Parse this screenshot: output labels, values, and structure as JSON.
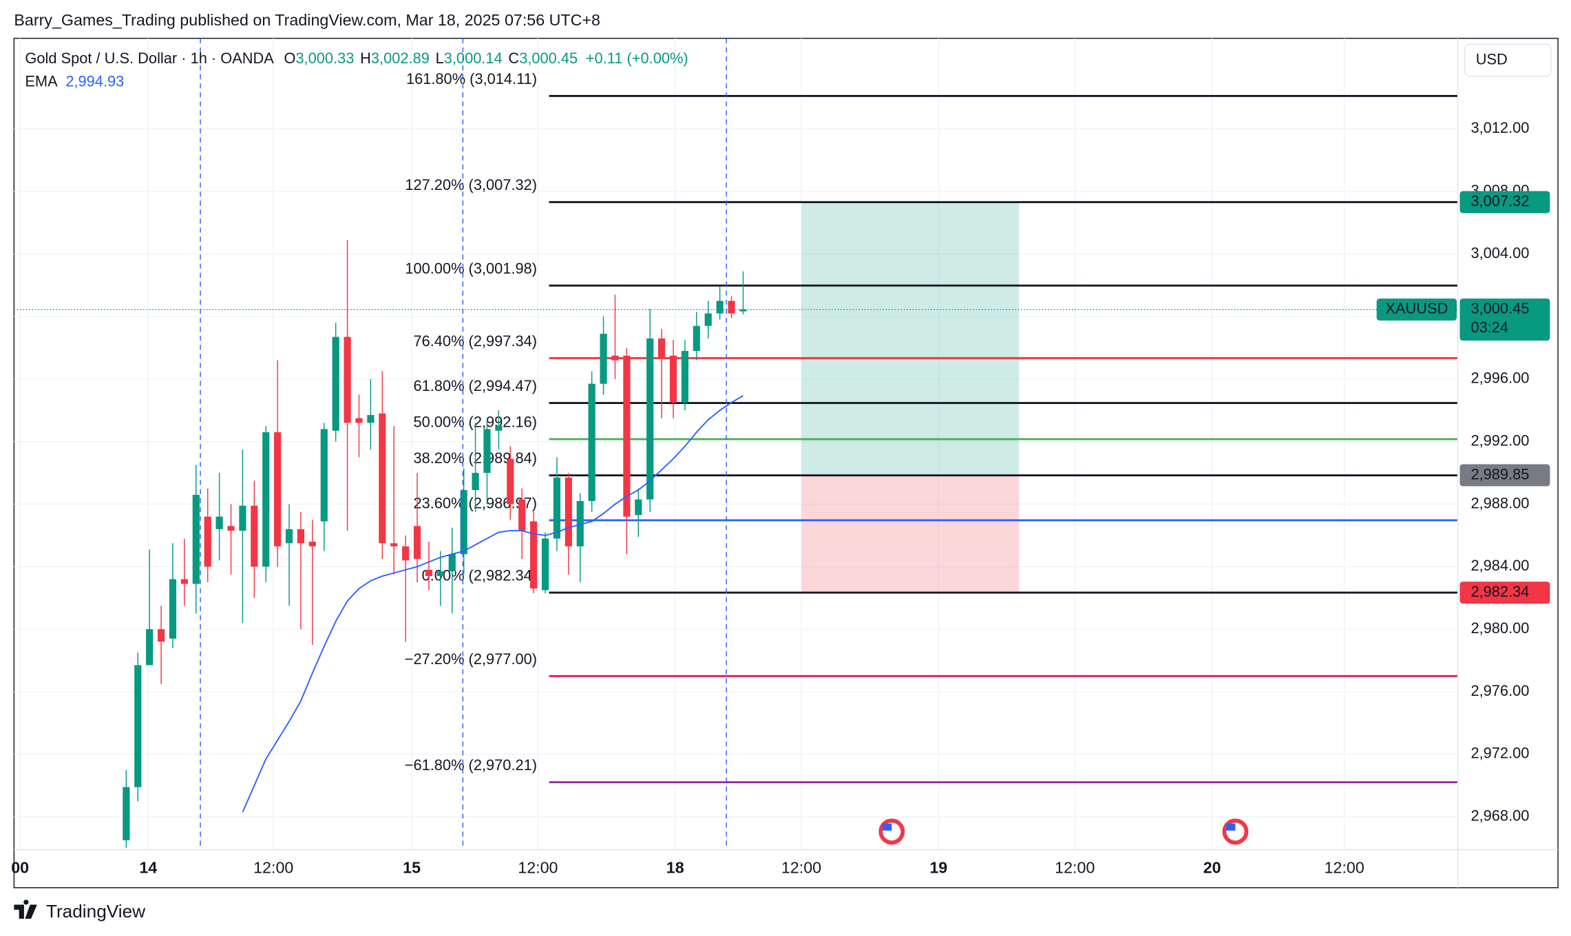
{
  "header": "Barry_Games_Trading published on TradingView.com, Mar 18, 2025 07:56 UTC+8",
  "footer": "TradingView",
  "chart_data": {
    "type": "candlestick",
    "legend": {
      "symbol": "Gold Spot / U.S. Dollar · 1h · OANDA",
      "ohlc": [
        {
          "key": "O",
          "value": "3,000.33"
        },
        {
          "key": "H",
          "value": "3,002.89"
        },
        {
          "key": "L",
          "value": "3,000.14"
        },
        {
          "key": "C",
          "value": "3,000.45"
        }
      ],
      "change": "+0.11 (+0.00%)"
    },
    "currency": "USD",
    "up_color": "#089981",
    "down_color": "#f23645",
    "open": [
      2966.5,
      2969.9,
      2977.7,
      2980,
      2979.4,
      2983.2,
      2982.9,
      2987.2,
      2986.4,
      2986.6,
      2986.3,
      2987.9,
      2984,
      2992.6,
      2985.5,
      2986.4,
      2985.6,
      2986.9,
      2992.7,
      2998.7,
      2993.5,
      2993.2,
      2993.8,
      2985.5,
      2985.3,
      2986.6,
      2983.8,
      2983.4,
      2983.7,
      2984.8,
      2988.9,
      2990,
      2992.7,
      2990.9,
      2988.3,
      2986.9,
      2982.5,
      2985.8,
      2989.7,
      2985.3,
      2988.2,
      2995.7,
      2997.5,
      2997.5,
      2987.3,
      2988.3,
      2998.6,
      2997.5,
      2994.5,
      2997.8,
      2999.4,
      3000.2,
      3001,
      3000.33
    ],
    "high": [
      2971,
      2978.5,
      2985.1,
      2981.5,
      2985.5,
      2985.8,
      2990.5,
      2989,
      2990,
      2988,
      2991.5,
      2989.5,
      2993,
      2997.2,
      2988,
      2987.5,
      2987,
      2993.2,
      2999.6,
      3004.9,
      2995,
      2996,
      2996.5,
      2993,
      2986,
      2990,
      2985.6,
      2985,
      2986.5,
      2990.3,
      2993.2,
      2993.5,
      2994,
      2991.7,
      2989,
      2987.5,
      2986.2,
      2991,
      2990,
      2988.7,
      2996.5,
      3000,
      3001.4,
      2998,
      2989,
      3000.5,
      2999.2,
      2998.5,
      2998.5,
      3000.3,
      3001,
      3001.9,
      3001.3,
      3002.89
    ],
    "low": [
      2966,
      2969,
      2978,
      2976.5,
      2978.8,
      2981.5,
      2981,
      2983,
      2984.4,
      2983.5,
      2980.4,
      2982,
      2983,
      2984,
      2981.5,
      2980,
      2979,
      2985,
      2992,
      2986.3,
      2991,
      2991.5,
      2984.5,
      2983.5,
      2979.2,
      2983,
      2982.5,
      2981.5,
      2981,
      2983.5,
      2987.5,
      2988,
      2991.5,
      2987,
      2984.5,
      2982.3,
      2982.3,
      2985,
      2983.5,
      2983,
      2987.5,
      2995,
      2996,
      2984.8,
      2985.9,
      2987.5,
      2993.5,
      2993.5,
      2994,
      2997.2,
      2998.6,
      2999.8,
      2999.9,
      3000.14
    ],
    "close": [
      2969.9,
      2977.7,
      2980,
      2979.2,
      2983.2,
      2982.9,
      2988.6,
      2984,
      2987.2,
      2986.3,
      2987.9,
      2984,
      2992.6,
      2985.3,
      2986.4,
      2985.5,
      2985.3,
      2992.8,
      2998.7,
      2993.2,
      2993.2,
      2993.7,
      2985.5,
      2985.3,
      2984.4,
      2984.5,
      2983.4,
      2983.7,
      2984.8,
      2988.9,
      2990,
      2992.8,
      2993,
      2988,
      2986.3,
      2982.6,
      2985.8,
      2989.7,
      2985.3,
      2988.2,
      2995.7,
      2998.9,
      2997.2,
      2987.2,
      2988.3,
      2998.6,
      2997.3,
      2994.5,
      2997.8,
      2999.4,
      3000.2,
      3001,
      3000.2,
      3000.45
    ],
    "ema": {
      "name": "EMA",
      "last_label": "2,994.93",
      "color": "#2962ff",
      "values": [
        null,
        null,
        null,
        null,
        null,
        null,
        null,
        null,
        null,
        null,
        2968.3,
        2970,
        2971.7,
        2972.9,
        2974.1,
        2975.4,
        2977.2,
        2978.9,
        2980.5,
        2981.8,
        2982.6,
        2983.1,
        2983.4,
        2983.6,
        2983.8,
        2984,
        2984.3,
        2984.6,
        2984.8,
        2985,
        2985.4,
        2985.8,
        2986.2,
        2986.3,
        2986.3,
        2986.1,
        2986,
        2986.2,
        2986.5,
        2986.7,
        2986.9,
        2987.4,
        2988,
        2988.5,
        2988.9,
        2989.5,
        2990.2,
        2990.9,
        2991.7,
        2992.6,
        2993.4,
        2994,
        2994.5,
        2994.93
      ]
    },
    "fib": [
      {
        "label": "161.80% (3,014.11)",
        "value": 3014.11,
        "color": "#131722"
      },
      {
        "label": "127.20% (3,007.32)",
        "value": 3007.32,
        "color": "#131722"
      },
      {
        "label": "100.00% (3,001.98)",
        "value": 3001.98,
        "color": "#131722"
      },
      {
        "label": "76.40% (2,997.34)",
        "value": 2997.34,
        "color": "#f23645"
      },
      {
        "label": "61.80% (2,994.47)",
        "value": 2994.47,
        "color": "#131722"
      },
      {
        "label": "50.00% (2,992.16)",
        "value": 2992.16,
        "color": "#4caf50"
      },
      {
        "label": "38.20% (2,989.84)",
        "value": 2989.84,
        "color": "#131722"
      },
      {
        "label": "23.60% (2,986.97)",
        "value": 2986.97,
        "color": "#2962ff"
      },
      {
        "label": "0.00% (2,982.34)",
        "value": 2982.34,
        "color": "#131722"
      },
      {
        "label": "−27.20% (2,977.00)",
        "value": 2977.0,
        "color": "#e91e63"
      },
      {
        "label": "−61.80% (2,970.21)",
        "value": 2970.21,
        "color": "#9c27b0"
      }
    ],
    "position": {
      "target": 3007.32,
      "entry": 2989.85,
      "stop": 2982.34
    },
    "price_tags": [
      {
        "label": "3,007.32",
        "value": 3007.32,
        "color": "#089981"
      },
      {
        "label": "2,989.85",
        "value": 2989.85,
        "color": "#787b86"
      },
      {
        "label": "2,982.34",
        "value": 2982.34,
        "color": "#f23645"
      }
    ],
    "last_price": {
      "symbol": "XAUUSD",
      "label": "3,000.45",
      "value": 3000.45,
      "countdown": "03:24",
      "color": "#089981"
    },
    "ylim": [
      2965.9,
      3017.8
    ],
    "yticks": [
      {
        "value": 2968,
        "label": "2,968.00"
      },
      {
        "value": 2972,
        "label": "2,972.00"
      },
      {
        "value": 2976,
        "label": "2,976.00"
      },
      {
        "value": 2980,
        "label": "2,980.00"
      },
      {
        "value": 2984,
        "label": "2,984.00"
      },
      {
        "value": 2988,
        "label": "2,988.00"
      },
      {
        "value": 2992,
        "label": "2,992.00"
      },
      {
        "value": 2996,
        "label": "2,996.00"
      },
      {
        "value": 3000,
        "label": "3,000.00"
      },
      {
        "value": 3004,
        "label": "3,004.00"
      },
      {
        "value": 3008,
        "label": "3,008.00"
      },
      {
        "value": 3012,
        "label": "3,012.00"
      }
    ],
    "xlim": [
      -9.64,
      114.4
    ],
    "xticks": [
      {
        "value": -9.12,
        "label": "00"
      },
      {
        "value": 1.89,
        "label": "14"
      },
      {
        "value": 12.65,
        "label": "12:00"
      },
      {
        "value": 24.53,
        "label": "15"
      },
      {
        "value": 35.37,
        "label": "12:00"
      },
      {
        "value": 47.16,
        "label": "18"
      },
      {
        "value": 58.0,
        "label": "12:00"
      },
      {
        "value": 69.79,
        "label": "19"
      },
      {
        "value": 81.5,
        "label": "12:00"
      },
      {
        "value": 93.29,
        "label": "20"
      },
      {
        "value": 104.65,
        "label": "12:00"
      }
    ],
    "grid": true
  }
}
